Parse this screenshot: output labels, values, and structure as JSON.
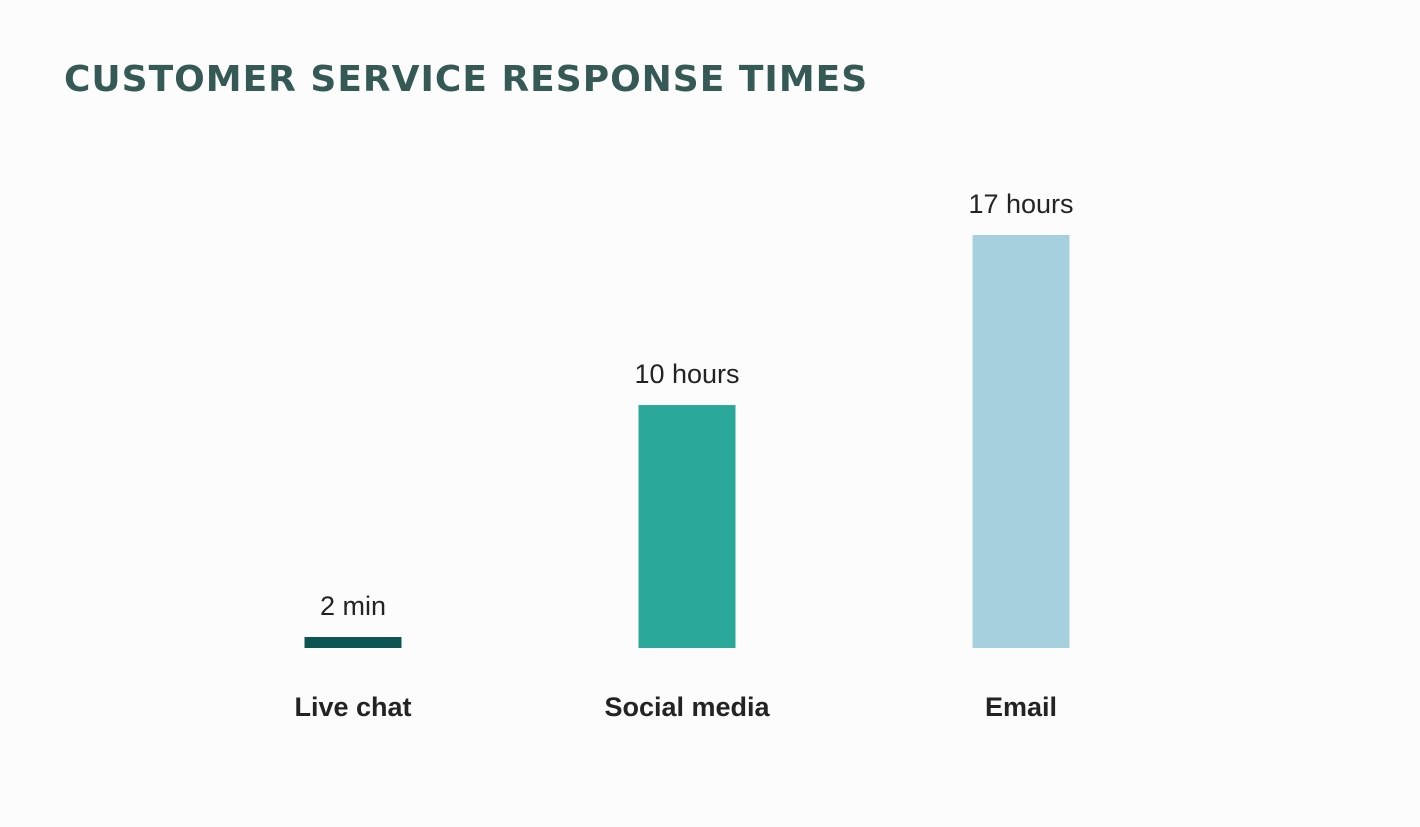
{
  "chart_data": {
    "type": "bar",
    "title": "CUSTOMER SERVICE RESPONSE TIMES",
    "xlabel": "",
    "ylabel": "",
    "unit": "hours",
    "categories": [
      "Live chat",
      "Social media",
      "Email"
    ],
    "values": [
      0.0333,
      10,
      17
    ],
    "data_labels": [
      "2 min",
      "10 hours",
      "17 hours"
    ],
    "colors": [
      "#0c5552",
      "#2aa89a",
      "#a7d0df"
    ],
    "ylim": [
      0,
      17
    ],
    "grid": false,
    "legend": "none"
  },
  "colors": {
    "title": "#355a56",
    "text": "#232323",
    "background": "#fdfcfd"
  }
}
